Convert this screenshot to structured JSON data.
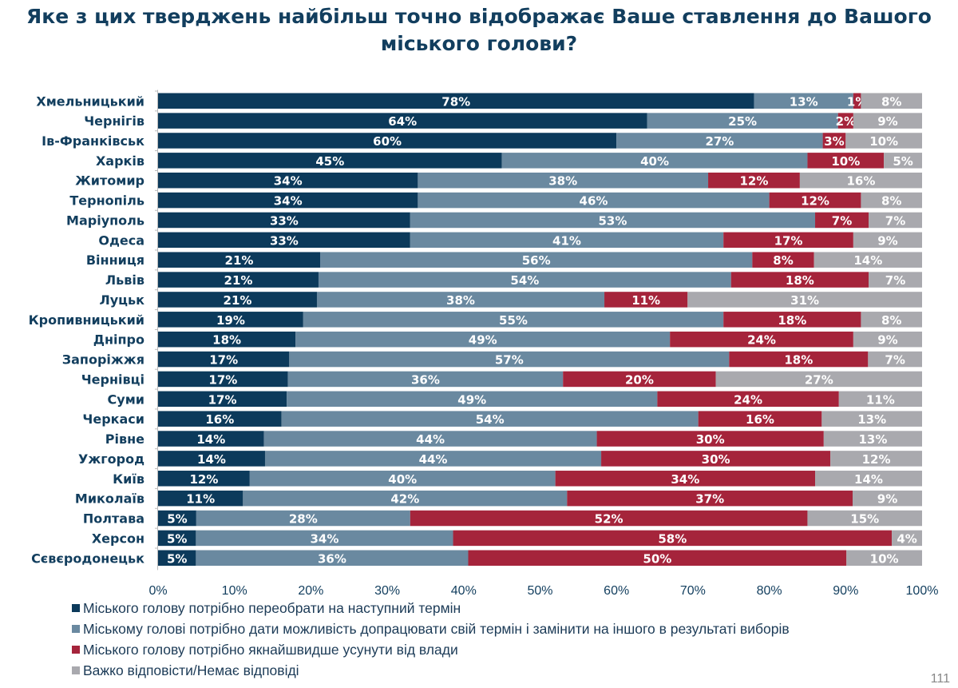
{
  "title": "Яке з цих тверджень найбільш точно відображає Ваше ставлення до Вашого міського голови?",
  "page_number": "111",
  "colors": {
    "reelect": "#0c3a5b",
    "finish_term": "#6a89a0",
    "remove": "#a5243b",
    "dont_know": "#a9a9ae",
    "title": "#123e5e"
  },
  "chart_data": {
    "type": "bar",
    "orientation": "horizontal",
    "stacked": true,
    "title": "Яке з цих тверджень найбільш точно відображає Ваше ставлення до Вашого міського голови?",
    "xlim": [
      0,
      100
    ],
    "x_ticks": [
      "0%",
      "10%",
      "20%",
      "30%",
      "40%",
      "50%",
      "60%",
      "70%",
      "80%",
      "90%",
      "100%"
    ],
    "grid": false,
    "legend_position": "bottom",
    "categories": [
      "Хмельницький",
      "Чернігів",
      "Ів-Франківськ",
      "Харків",
      "Житомир",
      "Тернопіль",
      "Маріуполь",
      "Одеса",
      "Вінниця",
      "Львів",
      "Луцьк",
      "Кропивницький",
      "Дніпро",
      "Запоріжжя",
      "Чернівці",
      "Суми",
      "Черкаси",
      "Рівне",
      "Ужгород",
      "Київ",
      "Миколаїв",
      "Полтава",
      "Херсон",
      "Сєвєродонецьк"
    ],
    "series": [
      {
        "name": "Міського голову  потрібно переобрати на наступний термін",
        "color": "#0c3a5b",
        "values": [
          78,
          64,
          60,
          45,
          34,
          34,
          33,
          33,
          21,
          21,
          21,
          19,
          18,
          17,
          17,
          17,
          16,
          14,
          14,
          12,
          11,
          5,
          5,
          5
        ]
      },
      {
        "name": "Міському голові потрібно дати можливість допрацювати свій термін і замінити на іншого в результаті виборів",
        "color": "#6a89a0",
        "values": [
          13,
          25,
          27,
          40,
          38,
          46,
          53,
          41,
          56,
          54,
          38,
          55,
          49,
          57,
          36,
          49,
          54,
          44,
          44,
          40,
          42,
          28,
          34,
          36
        ]
      },
      {
        "name": "Міського голову потрібно якнайшвидше усунути від влади",
        "color": "#a5243b",
        "values": [
          1,
          2,
          3,
          10,
          12,
          12,
          7,
          17,
          8,
          18,
          11,
          18,
          24,
          18,
          20,
          24,
          16,
          30,
          30,
          34,
          37,
          52,
          58,
          50
        ]
      },
      {
        "name": "Важко відповісти/Немає відповіді",
        "color": "#a9a9ae",
        "values": [
          8,
          9,
          10,
          5,
          16,
          8,
          7,
          9,
          14,
          7,
          31,
          8,
          9,
          7,
          27,
          11,
          13,
          13,
          12,
          14,
          9,
          15,
          4,
          10
        ]
      }
    ]
  }
}
